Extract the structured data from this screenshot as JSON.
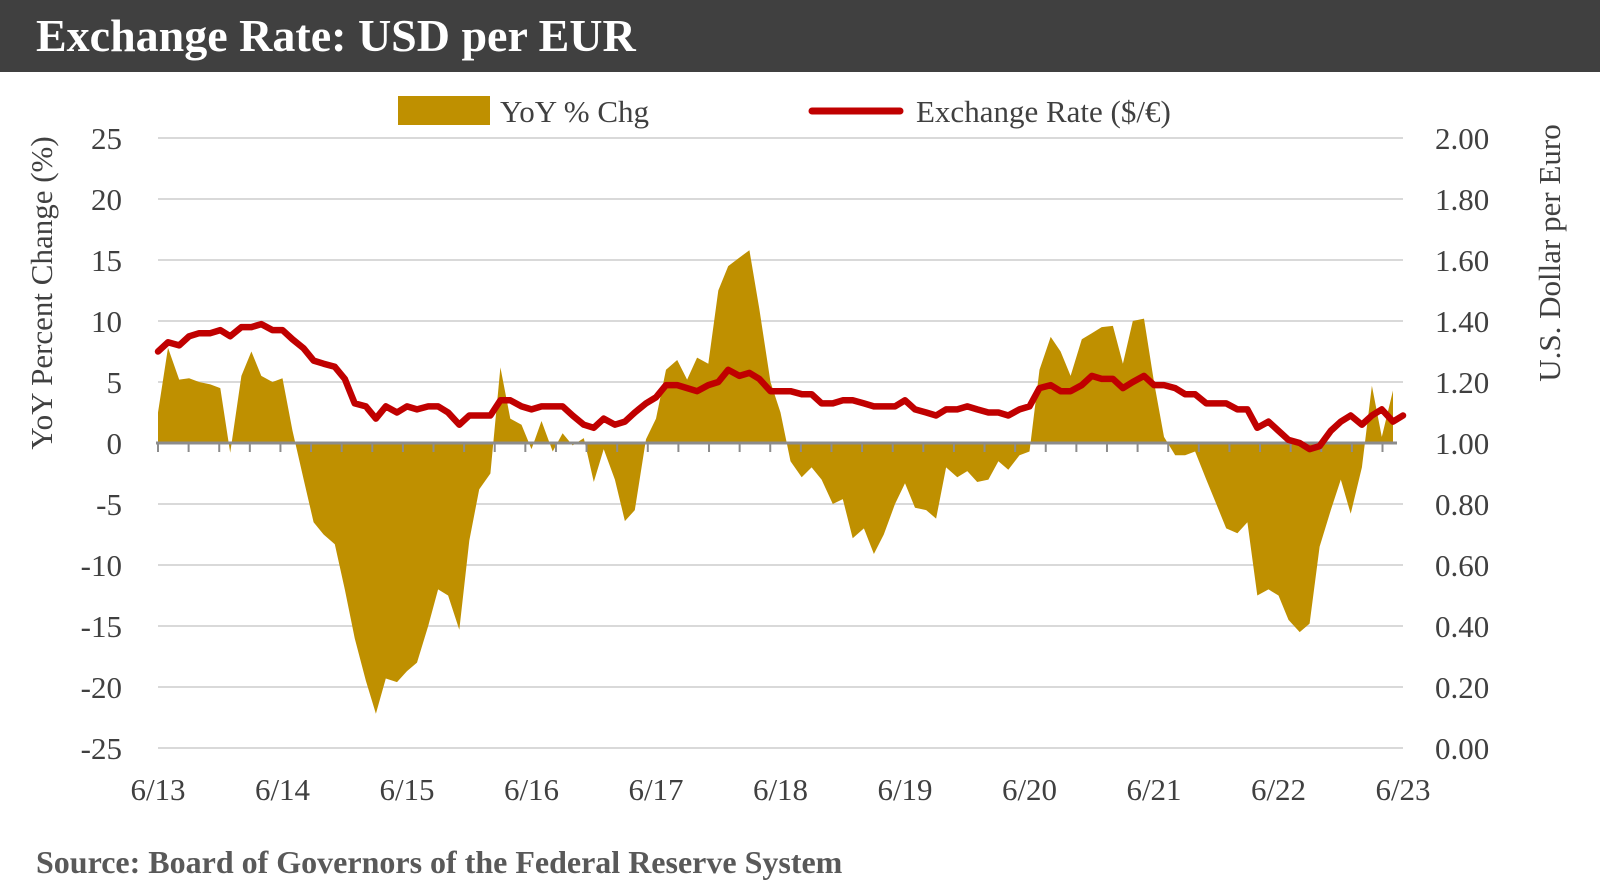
{
  "header": {
    "title": "Exchange Rate: USD per EUR"
  },
  "footer": {
    "source": "Source:  Board of Governors of the Federal Reserve System"
  },
  "colors": {
    "bar_fill": "#BF9000",
    "line": "#C00000",
    "grid": "#D9D9D9",
    "title_bg": "#404040",
    "axis": "#8C8C8C"
  },
  "chart_data": {
    "type": "area",
    "legend": {
      "position": "top-center",
      "items": [
        "YoY % Chg",
        "Exchange Rate ($/€)"
      ]
    },
    "grid": true,
    "x_tick_labels": [
      "6/13",
      "6/14",
      "6/15",
      "6/16",
      "6/17",
      "6/18",
      "6/19",
      "6/20",
      "6/21",
      "6/22",
      "6/23"
    ],
    "y_left": {
      "label": "YoY Percent Change (%)",
      "range": [
        -25,
        25
      ],
      "ticks": [
        25,
        20,
        15,
        10,
        5,
        0,
        -5,
        -10,
        -15,
        -20,
        -25
      ]
    },
    "y_right": {
      "label": "U.S. Dollar per Euro",
      "range": [
        0,
        2
      ],
      "ticks": [
        "2.00",
        "1.80",
        "1.60",
        "1.40",
        "1.20",
        "1.00",
        "0.80",
        "0.60",
        "0.40",
        "0.20",
        "0.00"
      ]
    },
    "series": [
      {
        "name": "YoY % Chg",
        "axis": "left",
        "points": [
          [
            2013.5,
            2.5
          ],
          [
            2013.58,
            7.8
          ],
          [
            2013.67,
            5.2
          ],
          [
            2013.75,
            5.3
          ],
          [
            2013.83,
            5.0
          ],
          [
            2013.92,
            4.8
          ],
          [
            2014.0,
            4.5
          ],
          [
            2014.08,
            -0.8
          ],
          [
            2014.17,
            5.5
          ],
          [
            2014.25,
            7.5
          ],
          [
            2014.33,
            5.5
          ],
          [
            2014.42,
            5.0
          ],
          [
            2014.5,
            5.3
          ],
          [
            2014.58,
            1.0
          ],
          [
            2014.67,
            -3.0
          ],
          [
            2014.75,
            -6.5
          ],
          [
            2014.83,
            -7.5
          ],
          [
            2014.92,
            -8.3
          ],
          [
            2015.0,
            -12.0
          ],
          [
            2015.08,
            -16.0
          ],
          [
            2015.17,
            -19.5
          ],
          [
            2015.25,
            -22.2
          ],
          [
            2015.33,
            -19.3
          ],
          [
            2015.42,
            -19.6
          ],
          [
            2015.5,
            -18.7
          ],
          [
            2015.58,
            -18.0
          ],
          [
            2015.67,
            -15.0
          ],
          [
            2015.75,
            -12.0
          ],
          [
            2015.83,
            -12.5
          ],
          [
            2015.92,
            -15.3
          ],
          [
            2016.0,
            -8.0
          ],
          [
            2016.08,
            -3.8
          ],
          [
            2016.17,
            -2.5
          ],
          [
            2016.25,
            6.2
          ],
          [
            2016.33,
            2.0
          ],
          [
            2016.42,
            1.5
          ],
          [
            2016.5,
            -0.5
          ],
          [
            2016.58,
            1.8
          ],
          [
            2016.67,
            -0.7
          ],
          [
            2016.75,
            0.8
          ],
          [
            2016.83,
            -0.2
          ],
          [
            2016.92,
            0.4
          ],
          [
            2017.0,
            -3.2
          ],
          [
            2017.08,
            -0.5
          ],
          [
            2017.17,
            -3.0
          ],
          [
            2017.25,
            -6.4
          ],
          [
            2017.33,
            -5.5
          ],
          [
            2017.42,
            0.3
          ],
          [
            2017.5,
            2.0
          ],
          [
            2017.58,
            6.0
          ],
          [
            2017.67,
            6.8
          ],
          [
            2017.75,
            5.2
          ],
          [
            2017.83,
            7.0
          ],
          [
            2017.92,
            6.5
          ],
          [
            2018.0,
            12.5
          ],
          [
            2018.08,
            14.5
          ],
          [
            2018.17,
            15.2
          ],
          [
            2018.25,
            15.8
          ],
          [
            2018.33,
            11.0
          ],
          [
            2018.42,
            5.0
          ],
          [
            2018.5,
            2.5
          ],
          [
            2018.58,
            -1.5
          ],
          [
            2018.67,
            -2.8
          ],
          [
            2018.75,
            -2.0
          ],
          [
            2018.83,
            -3.0
          ],
          [
            2018.92,
            -5.0
          ],
          [
            2019.0,
            -4.6
          ],
          [
            2019.08,
            -7.8
          ],
          [
            2019.17,
            -7.0
          ],
          [
            2019.25,
            -9.1
          ],
          [
            2019.33,
            -7.5
          ],
          [
            2019.42,
            -5.0
          ],
          [
            2019.5,
            -3.3
          ],
          [
            2019.58,
            -5.3
          ],
          [
            2019.67,
            -5.5
          ],
          [
            2019.75,
            -6.2
          ],
          [
            2019.83,
            -2.0
          ],
          [
            2019.92,
            -2.8
          ],
          [
            2020.0,
            -2.3
          ],
          [
            2020.08,
            -3.2
          ],
          [
            2020.17,
            -3.0
          ],
          [
            2020.25,
            -1.5
          ],
          [
            2020.33,
            -2.2
          ],
          [
            2020.42,
            -1.0
          ],
          [
            2020.5,
            -0.7
          ],
          [
            2020.58,
            6.0
          ],
          [
            2020.67,
            8.7
          ],
          [
            2020.75,
            7.5
          ],
          [
            2020.83,
            5.5
          ],
          [
            2020.92,
            8.5
          ],
          [
            2021.0,
            9.0
          ],
          [
            2021.08,
            9.5
          ],
          [
            2021.17,
            9.6
          ],
          [
            2021.25,
            6.5
          ],
          [
            2021.33,
            10.0
          ],
          [
            2021.42,
            10.2
          ],
          [
            2021.5,
            5.0
          ],
          [
            2021.58,
            0.5
          ],
          [
            2021.67,
            -1.0
          ],
          [
            2021.75,
            -1.0
          ],
          [
            2021.83,
            -0.7
          ],
          [
            2021.92,
            -3.0
          ],
          [
            2022.0,
            -5.0
          ],
          [
            2022.08,
            -7.0
          ],
          [
            2022.17,
            -7.4
          ],
          [
            2022.25,
            -6.5
          ],
          [
            2022.33,
            -12.5
          ],
          [
            2022.42,
            -12.0
          ],
          [
            2022.5,
            -12.5
          ],
          [
            2022.58,
            -14.5
          ],
          [
            2022.67,
            -15.5
          ],
          [
            2022.75,
            -14.8
          ],
          [
            2022.83,
            -8.5
          ],
          [
            2022.92,
            -5.5
          ],
          [
            2023.0,
            -3.0
          ],
          [
            2023.08,
            -5.8
          ],
          [
            2023.17,
            -2.0
          ],
          [
            2023.25,
            4.7
          ],
          [
            2023.33,
            0.5
          ],
          [
            2023.42,
            4.3
          ]
        ]
      },
      {
        "name": "Exchange Rate ($/€)",
        "axis": "right",
        "points": [
          [
            2013.5,
            1.3
          ],
          [
            2013.58,
            1.33
          ],
          [
            2013.67,
            1.32
          ],
          [
            2013.75,
            1.35
          ],
          [
            2013.83,
            1.36
          ],
          [
            2013.92,
            1.36
          ],
          [
            2014.0,
            1.37
          ],
          [
            2014.08,
            1.35
          ],
          [
            2014.17,
            1.38
          ],
          [
            2014.25,
            1.38
          ],
          [
            2014.33,
            1.39
          ],
          [
            2014.42,
            1.37
          ],
          [
            2014.5,
            1.37
          ],
          [
            2014.58,
            1.34
          ],
          [
            2014.67,
            1.31
          ],
          [
            2014.75,
            1.27
          ],
          [
            2014.83,
            1.26
          ],
          [
            2014.92,
            1.25
          ],
          [
            2015.0,
            1.21
          ],
          [
            2015.08,
            1.13
          ],
          [
            2015.17,
            1.12
          ],
          [
            2015.25,
            1.08
          ],
          [
            2015.33,
            1.12
          ],
          [
            2015.42,
            1.1
          ],
          [
            2015.5,
            1.12
          ],
          [
            2015.58,
            1.11
          ],
          [
            2015.67,
            1.12
          ],
          [
            2015.75,
            1.12
          ],
          [
            2015.83,
            1.1
          ],
          [
            2015.92,
            1.06
          ],
          [
            2016.0,
            1.09
          ],
          [
            2016.08,
            1.09
          ],
          [
            2016.17,
            1.09
          ],
          [
            2016.25,
            1.14
          ],
          [
            2016.33,
            1.14
          ],
          [
            2016.42,
            1.12
          ],
          [
            2016.5,
            1.11
          ],
          [
            2016.58,
            1.12
          ],
          [
            2016.67,
            1.12
          ],
          [
            2016.75,
            1.12
          ],
          [
            2016.83,
            1.09
          ],
          [
            2016.92,
            1.06
          ],
          [
            2017.0,
            1.05
          ],
          [
            2017.08,
            1.08
          ],
          [
            2017.17,
            1.06
          ],
          [
            2017.25,
            1.07
          ],
          [
            2017.33,
            1.1
          ],
          [
            2017.42,
            1.13
          ],
          [
            2017.5,
            1.15
          ],
          [
            2017.58,
            1.19
          ],
          [
            2017.67,
            1.19
          ],
          [
            2017.75,
            1.18
          ],
          [
            2017.83,
            1.17
          ],
          [
            2017.92,
            1.19
          ],
          [
            2018.0,
            1.2
          ],
          [
            2018.08,
            1.24
          ],
          [
            2018.17,
            1.22
          ],
          [
            2018.25,
            1.23
          ],
          [
            2018.33,
            1.21
          ],
          [
            2018.42,
            1.17
          ],
          [
            2018.5,
            1.17
          ],
          [
            2018.58,
            1.17
          ],
          [
            2018.67,
            1.16
          ],
          [
            2018.75,
            1.16
          ],
          [
            2018.83,
            1.13
          ],
          [
            2018.92,
            1.13
          ],
          [
            2019.0,
            1.14
          ],
          [
            2019.08,
            1.14
          ],
          [
            2019.17,
            1.13
          ],
          [
            2019.25,
            1.12
          ],
          [
            2019.33,
            1.12
          ],
          [
            2019.42,
            1.12
          ],
          [
            2019.5,
            1.14
          ],
          [
            2019.58,
            1.11
          ],
          [
            2019.67,
            1.1
          ],
          [
            2019.75,
            1.09
          ],
          [
            2019.83,
            1.11
          ],
          [
            2019.92,
            1.11
          ],
          [
            2020.0,
            1.12
          ],
          [
            2020.08,
            1.11
          ],
          [
            2020.17,
            1.1
          ],
          [
            2020.25,
            1.1
          ],
          [
            2020.33,
            1.09
          ],
          [
            2020.42,
            1.11
          ],
          [
            2020.5,
            1.12
          ],
          [
            2020.58,
            1.18
          ],
          [
            2020.67,
            1.19
          ],
          [
            2020.75,
            1.17
          ],
          [
            2020.83,
            1.17
          ],
          [
            2020.92,
            1.19
          ],
          [
            2021.0,
            1.22
          ],
          [
            2021.08,
            1.21
          ],
          [
            2021.17,
            1.21
          ],
          [
            2021.25,
            1.18
          ],
          [
            2021.33,
            1.2
          ],
          [
            2021.42,
            1.22
          ],
          [
            2021.5,
            1.19
          ],
          [
            2021.58,
            1.19
          ],
          [
            2021.67,
            1.18
          ],
          [
            2021.75,
            1.16
          ],
          [
            2021.83,
            1.16
          ],
          [
            2021.92,
            1.13
          ],
          [
            2022.0,
            1.13
          ],
          [
            2022.08,
            1.13
          ],
          [
            2022.17,
            1.11
          ],
          [
            2022.25,
            1.11
          ],
          [
            2022.33,
            1.05
          ],
          [
            2022.42,
            1.07
          ],
          [
            2022.5,
            1.04
          ],
          [
            2022.58,
            1.01
          ],
          [
            2022.67,
            1.0
          ],
          [
            2022.75,
            0.98
          ],
          [
            2022.83,
            0.99
          ],
          [
            2022.92,
            1.04
          ],
          [
            2023.0,
            1.07
          ],
          [
            2023.08,
            1.09
          ],
          [
            2023.17,
            1.06
          ],
          [
            2023.25,
            1.09
          ],
          [
            2023.33,
            1.11
          ],
          [
            2023.42,
            1.07
          ],
          [
            2023.5,
            1.09
          ]
        ]
      }
    ]
  }
}
